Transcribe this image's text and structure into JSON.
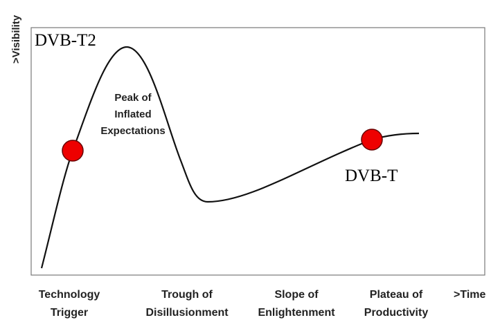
{
  "axes": {
    "y_label": ">Visibility",
    "x_label": ">Time"
  },
  "peak_label": [
    "Peak of",
    "Inflated",
    "Expectations"
  ],
  "markers": [
    {
      "label": "DVB-T2"
    },
    {
      "label": "DVB-T"
    }
  ],
  "phases": [
    [
      "Technology",
      "Trigger"
    ],
    [
      "Trough of",
      "Disillusionment"
    ],
    [
      "Slope of",
      "Enlightenment"
    ],
    [
      "Plateau of",
      "Productivity"
    ]
  ]
}
